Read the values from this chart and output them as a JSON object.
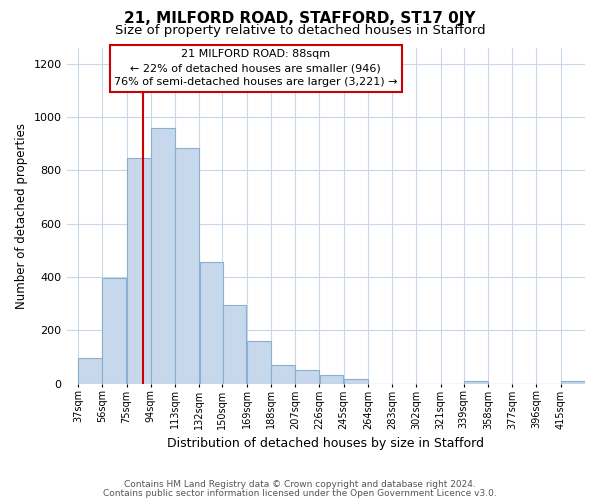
{
  "title": "21, MILFORD ROAD, STAFFORD, ST17 0JY",
  "subtitle": "Size of property relative to detached houses in Stafford",
  "xlabel": "Distribution of detached houses by size in Stafford",
  "ylabel": "Number of detached properties",
  "categories": [
    "37sqm",
    "56sqm",
    "75sqm",
    "94sqm",
    "113sqm",
    "132sqm",
    "150sqm",
    "169sqm",
    "188sqm",
    "207sqm",
    "226sqm",
    "245sqm",
    "264sqm",
    "283sqm",
    "302sqm",
    "321sqm",
    "339sqm",
    "358sqm",
    "377sqm",
    "396sqm",
    "415sqm"
  ],
  "values": [
    95,
    395,
    845,
    960,
    885,
    455,
    295,
    160,
    70,
    52,
    32,
    18,
    0,
    0,
    0,
    0,
    10,
    0,
    0,
    0,
    10
  ],
  "bar_color": "#c8d8ec",
  "bar_edge_color": "#8ab0d0",
  "property_line_x": 88,
  "property_line_label": "21 MILFORD ROAD: 88sqm",
  "annotation_line1": "← 22% of detached houses are smaller (946)",
  "annotation_line2": "76% of semi-detached houses are larger (3,221) →",
  "annotation_box_color": "#ffffff",
  "annotation_box_edge_color": "#cc0000",
  "vline_color": "#cc0000",
  "ylim": [
    0,
    1260
  ],
  "footnote1": "Contains HM Land Registry data © Crown copyright and database right 2024.",
  "footnote2": "Contains public sector information licensed under the Open Government Licence v3.0.",
  "bg_color": "#ffffff",
  "grid_color": "#c8d8e8",
  "title_fontsize": 11,
  "subtitle_fontsize": 9.5,
  "bin_starts": [
    37,
    56,
    75,
    94,
    113,
    132,
    150,
    169,
    188,
    207,
    226,
    245,
    264,
    283,
    302,
    321,
    339,
    358,
    377,
    396,
    415
  ],
  "bin_width": 19
}
